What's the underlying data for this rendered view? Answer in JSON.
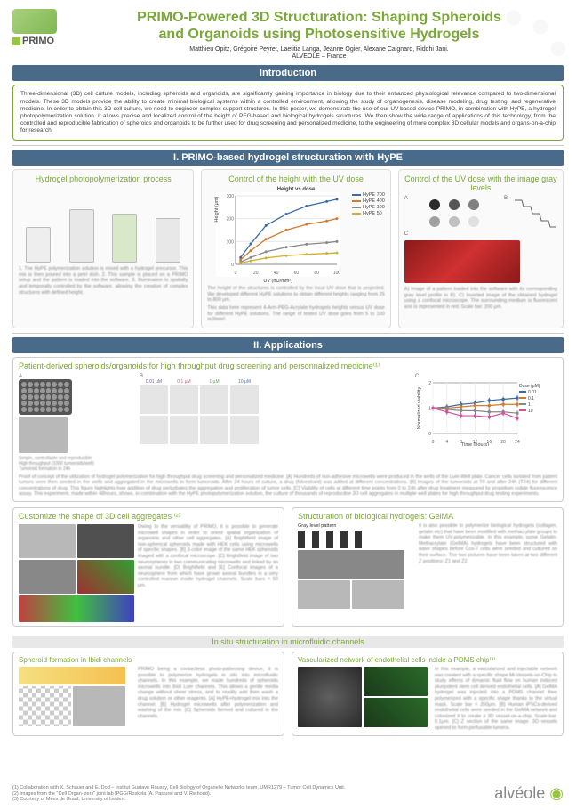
{
  "header": {
    "primo_label": "PRIMO",
    "title_line1": "PRIMO-Powered 3D Structuration: Shaping Spheroids",
    "title_line2": "and Organoids using Photosensitive Hydrogels",
    "authors": "Matthieu Opitz, Grégoire Peyret, Laetitia Langa, Jeanne Ogier, Alexane Caignard, Riddhi Jani.",
    "affiliation": "ALVEOLE – France"
  },
  "sections": {
    "intro_header": "Introduction",
    "intro_text": "Three-dimensional (3D) cell culture models, including spheroids and organoids, are significantly gaining importance in biology due to their enhanced physiological relevance compared to two-dimensional models. These 3D models provide the ability to create minimal biological systems within a controlled environment, allowing the study of organogenesis, disease modeling, drug testing, and regenerative medicine. In order to obtain this 3D cell culture, we need to engineer complex support structures. In this poster, we demonstrate the use of our UV-based device PRIMO, in combination with HyPE, a hydrogel photopolymerization solution. It allows precise and localized control of the height of PEG-based and biological hydrogels structures. We then show the wide range of applications of this technology, from the controlled and reproducible fabrication of spheroids and organoids to be further used for drug screening and personalized medicine, to the engineering of more complex 3D cellular models and organs-on-a-chip for research.",
    "s1_header": "I. PRIMO-based hydrogel structuration with HyPE",
    "s2_header": "II. Applications",
    "in_situ_header": "In situ structuration in microfluidic channels"
  },
  "panel1": {
    "a_title": "Hydrogel photopolymerization process",
    "a_caption": "1. The HyPE polymerization solution is mixed with a hydrogel precursor. This mix is then poured into a petri dish. 2. This sample is placed on a PRIMO setup and the pattern is loaded into the software. 3. Illumination is spatially and temporally controlled by the software, allowing the creation of complex structures with defined height.",
    "b_title": "Control of the height with the UV dose",
    "chart": {
      "title": "Height vs dose",
      "ylabel": "Height (μm)",
      "xlabel": "UV (mJ/mm²)",
      "ylim": [
        0,
        300
      ],
      "xlim": [
        0,
        100
      ],
      "xticks": [
        0,
        20,
        40,
        60,
        80,
        100
      ],
      "yticks": [
        0,
        100,
        200,
        300
      ],
      "series": [
        {
          "name": "HyPE 700",
          "color": "#3a6aa8",
          "pts": [
            [
              5,
              30
            ],
            [
              15,
              90
            ],
            [
              30,
              170
            ],
            [
              50,
              220
            ],
            [
              70,
              255
            ],
            [
              90,
              275
            ],
            [
              100,
              285
            ]
          ]
        },
        {
          "name": "HyPE 400",
          "color": "#d07a2a",
          "pts": [
            [
              5,
              20
            ],
            [
              15,
              60
            ],
            [
              30,
              110
            ],
            [
              50,
              150
            ],
            [
              70,
              175
            ],
            [
              90,
              190
            ],
            [
              100,
              200
            ]
          ]
        },
        {
          "name": "HyPE 100",
          "color": "#888888",
          "pts": [
            [
              5,
              10
            ],
            [
              15,
              30
            ],
            [
              30,
              55
            ],
            [
              50,
              75
            ],
            [
              70,
              88
            ],
            [
              90,
              95
            ],
            [
              100,
              100
            ]
          ]
        },
        {
          "name": "HyPE 50",
          "color": "#d0b030",
          "pts": [
            [
              5,
              6
            ],
            [
              15,
              15
            ],
            [
              30,
              28
            ],
            [
              50,
              38
            ],
            [
              70,
              44
            ],
            [
              90,
              48
            ],
            [
              100,
              50
            ]
          ]
        }
      ]
    },
    "b_caption": "The height of the structures is controlled by the local UV dose that is projected. We developed different HyPE solutions to obtain different heights ranging from 25 to 800 μm.",
    "b_caption2": "This data here represent 4-Arm-PEG-Acrylate hydrogels heights versus UV dose for different HyPE solutions. The range of tested UV dose goes from 5 to 100 mJ/mm².",
    "c_title": "Control of the UV dose with the image gray levels",
    "dot_colors": [
      "#2a2a2a",
      "#555555",
      "#808080",
      "#a0a0a0",
      "#c0c0c0",
      "#e0e0e0"
    ],
    "c_caption": "A) Image of a pattern loaded into the software with its corresponding gray level profile in B). C) Inverted image of the obtained hydrogel using a confocal microscope. The surrounding medium is fluorescent and is represented in red. Scale bar: 200 μm."
  },
  "panel2": {
    "a_title": "Patient-derived spheroids/organoids for high throughput drug screening and personnalized medicine⁽¹⁾",
    "a_bullets": "Simple, controllable and reproducible\nHigh throughput (1000 tumoroids/well)\nTumoroid formation in 24h",
    "conc_labels": [
      "0.01 μM",
      "0.1 μM",
      "1 μM",
      "10 μM"
    ],
    "conc_colors": [
      "#7a5aa8",
      "#c85a8a",
      "#5aa85a",
      "#3a7ac8"
    ],
    "viability_chart": {
      "ylabel": "Normalized viability",
      "xlabel": "Time (hours)",
      "xticks": [
        0,
        4,
        8,
        12,
        16,
        20,
        24
      ],
      "ylim": [
        0,
        2
      ],
      "legend_title": "Dose (μM)",
      "series": [
        {
          "name": "0.01",
          "color": "#3a6aa8"
        },
        {
          "name": "0.1",
          "color": "#d07a2a"
        },
        {
          "name": "1",
          "color": "#888888"
        },
        {
          "name": "10",
          "color": "#d050a0"
        }
      ]
    },
    "b_title": "Customize the shape of 3D cell aggregates ⁽²⁾",
    "b_caption": "Owing to the versatility of PRIMO, it is possible to generate microwell shapes in order to orient spatial organization of organoids and other cell aggregates. [A] Brightfield image of non-spherical spheroids made with HEK cells using microwells of specific shapes. [B] 3-color image of the same HEK spheroids imaged with a confocal microscope. [C] Brightfield image of two neurospheres in two communicating microwells and linked by an axonal bundle. [D] Brightfield and [E] Confocal images of a neurosphere from which have grown axonal bundles in a very controlled manner inside hydrogel channels. Scale bars = 50 μm.",
    "c_title": "Structuration of biological hydrogels: GelMA",
    "c_label": "Gray level pattern",
    "c_caption": "It is also possible to polymerize biological hydrogels (collagen, gelatin etc) that have been modified with methacrylate groups to make them UV-polymerizable. In this example, some Gelatin-Methacrylate (GelMA) hydrogels have been structured with wave shapes before Cos-7 cells were seeded and cultured on their surface. The two pictures have been taken at two different Z positions: Z1 and Z2.",
    "d_title": "Spheroid formation in Ibidi channels",
    "d_caption": "PRIMO being a contactless photo-patterning device, it is possible to polymerize hydrogels in situ into microfluidic channels. In this example, we made hundreds of spheroids microwells into Ibidi Luer channels. This allows a gentle media change without sheer stress, and to readily add then wash a drug solution or other reagents. [A] HyPE+hydrogel mix into the channel. [B] Hydrogel microwells after polymerization and washing of the mix. [C] Spheroids formed and cultured in the channels.",
    "e_title": "Vascularized network of endothelial cells inside a PDMS chip⁽³⁾",
    "e_caption": "In this example, a vascularized and injectable network was created with a specific shape Mi-Vessels-on-Chip to study effects of dynamic fluid flow on human induced pluripotent stem cell derived endothelial cells. [A] GelMA hydrogel was injected into a PDMS channel then polymerized with a specific shape thanks to the virtual mask. Scale bar = 200μm. [B] Human iPSCs-derived endothelial cells were seeded in the GelMA network and colonized it to create a 3D vessel-on-a-chip. Scale bar: 0.1μm. [C] Z section of the same image. 3D vessels opened to form perfusable lumens."
  },
  "refs": {
    "r1": "(1) Collaboration with X. Schauer and E. Dod – Institut Gustave Roussy, Cell Biology of Organelle Networks team, UMR1279 – Tumor Cell Dynamics Unit.",
    "r2": "(2) Images from the \"Cell Organ-izers\" joint lab IPGG/Roskela (A. Pasturel and V. Rethoud).",
    "r3": "(3) Courtesy of Mees de Graaf, University of Leiden.",
    "footer_logo": "alvéole"
  }
}
